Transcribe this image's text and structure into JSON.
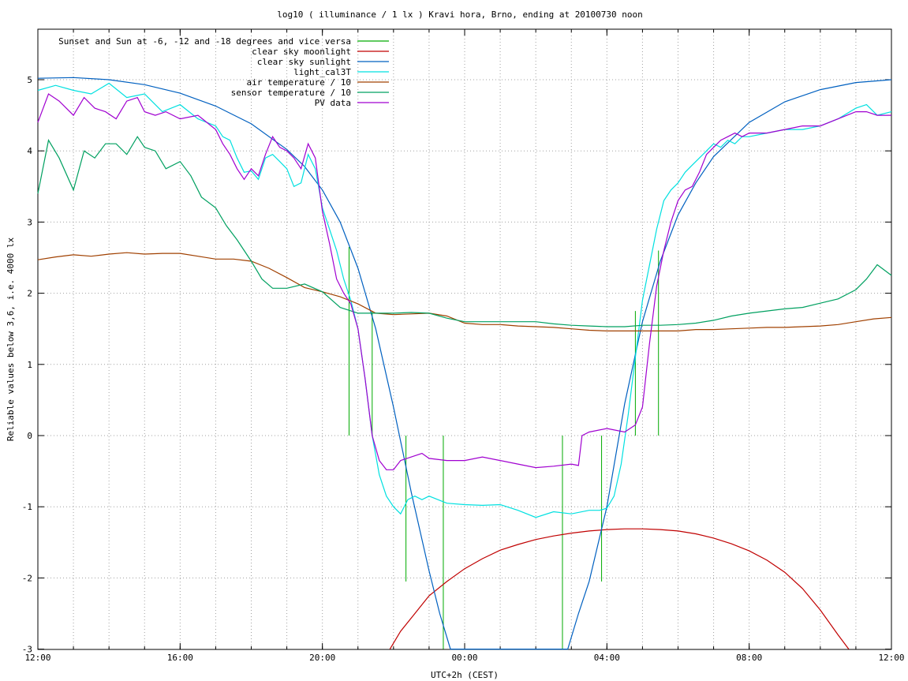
{
  "chart_data": {
    "type": "line",
    "title": "log10 ( illuminance / 1 lx ) Kravi hora, Brno, ending at 20100730 noon",
    "xlabel": "UTC+2h (CEST)",
    "ylabel": "Reliable values below 3,6, i.e. 4000 lx",
    "x_unit": "hours since 12:00",
    "xlim": [
      0,
      24
    ],
    "ylim": [
      -3,
      5.8
    ],
    "x_ticks": [
      {
        "pos": 0,
        "label": "12:00"
      },
      {
        "pos": 4,
        "label": "16:00"
      },
      {
        "pos": 8,
        "label": "20:00"
      },
      {
        "pos": 12,
        "label": "00:00"
      },
      {
        "pos": 16,
        "label": "04:00"
      },
      {
        "pos": 20,
        "label": "08:00"
      },
      {
        "pos": 24,
        "label": "12:00"
      }
    ],
    "y_ticks": [
      -3,
      -2,
      -1,
      0,
      1,
      2,
      3,
      4,
      5
    ],
    "grid": true,
    "legend_position": "top-left",
    "series": [
      {
        "name": "Sunset and Sun at -6, -12 and -18 degrees and vice versa",
        "color": "#00aa00",
        "style": "impulses",
        "points": [
          [
            8.75,
            2.65,
            0
          ],
          [
            9.4,
            1.75,
            0
          ],
          [
            10.35,
            0,
            -2.05
          ],
          [
            11.4,
            0,
            -3
          ],
          [
            14.75,
            0,
            -3
          ],
          [
            15.85,
            0,
            -2.05
          ],
          [
            16.8,
            1.75,
            0
          ],
          [
            17.45,
            2.6,
            0
          ]
        ]
      },
      {
        "name": "clear sky moonlight",
        "color": "#c00000",
        "x": [
          9.9,
          10.2,
          10.6,
          11.0,
          11.5,
          12.0,
          12.5,
          13.0,
          13.5,
          14.0,
          14.5,
          15.0,
          15.5,
          16.0,
          16.5,
          17.0,
          17.5,
          18.0,
          18.5,
          19.0,
          19.5,
          20.0,
          20.5,
          21.0,
          21.5,
          22.0,
          22.5,
          22.8
        ],
        "values": [
          -3.0,
          -2.75,
          -2.5,
          -2.25,
          -2.05,
          -1.87,
          -1.73,
          -1.61,
          -1.53,
          -1.46,
          -1.41,
          -1.37,
          -1.34,
          -1.32,
          -1.31,
          -1.31,
          -1.32,
          -1.34,
          -1.38,
          -1.44,
          -1.52,
          -1.62,
          -1.75,
          -1.92,
          -2.15,
          -2.45,
          -2.8,
          -3.0
        ]
      },
      {
        "name": "clear sky sunlight",
        "color": "#0060c0",
        "x": [
          0,
          1,
          2,
          3,
          4,
          5,
          6,
          7,
          7.5,
          8,
          8.5,
          9,
          9.5,
          10,
          10.5,
          11,
          11.3,
          11.6,
          14.9,
          15.2,
          15.5,
          16,
          16.5,
          17,
          17.5,
          18,
          18.5,
          19,
          20,
          21,
          22,
          23,
          24
        ],
        "values": [
          5.02,
          5.03,
          5.0,
          4.93,
          4.81,
          4.63,
          4.38,
          4.02,
          3.78,
          3.45,
          3.0,
          2.35,
          1.5,
          0.4,
          -0.8,
          -1.9,
          -2.5,
          -3.0,
          -3.0,
          -2.5,
          -2.05,
          -1.0,
          0.45,
          1.6,
          2.45,
          3.1,
          3.55,
          3.92,
          4.4,
          4.69,
          4.86,
          4.96,
          5.0
        ]
      },
      {
        "name": "light_cal3T",
        "color": "#00e0e0",
        "x": [
          0,
          0.5,
          1.0,
          1.5,
          2.0,
          2.5,
          3.0,
          3.5,
          4.0,
          4.5,
          5.0,
          5.2,
          5.4,
          5.6,
          5.8,
          6.0,
          6.2,
          6.4,
          6.6,
          6.8,
          7.0,
          7.2,
          7.4,
          7.6,
          7.8,
          8.0,
          8.2,
          8.4,
          8.6,
          8.8,
          9.0,
          9.2,
          9.4,
          9.6,
          9.8,
          10.0,
          10.2,
          10.4,
          10.6,
          10.8,
          11.0,
          11.5,
          12.0,
          12.5,
          13.0,
          13.5,
          14.0,
          14.5,
          15.0,
          15.5,
          15.8,
          16.0,
          16.2,
          16.4,
          16.6,
          16.8,
          17.0,
          17.2,
          17.4,
          17.6,
          17.8,
          18.0,
          18.2,
          18.4,
          18.6,
          18.8,
          19.0,
          19.2,
          19.4,
          19.6,
          19.8,
          20.0,
          20.5,
          21.0,
          21.5,
          22.0,
          22.5,
          23.0,
          23.3,
          23.6,
          24.0
        ],
        "values": [
          4.85,
          4.92,
          4.85,
          4.8,
          4.95,
          4.75,
          4.8,
          4.55,
          4.65,
          4.45,
          4.35,
          4.2,
          4.15,
          3.9,
          3.7,
          3.72,
          3.6,
          3.9,
          3.95,
          3.85,
          3.75,
          3.5,
          3.55,
          3.95,
          3.75,
          3.2,
          2.9,
          2.6,
          2.2,
          1.9,
          1.5,
          0.8,
          0.0,
          -0.55,
          -0.85,
          -1.0,
          -1.1,
          -0.9,
          -0.85,
          -0.9,
          -0.85,
          -0.95,
          -0.97,
          -0.98,
          -0.97,
          -1.05,
          -1.15,
          -1.07,
          -1.1,
          -1.05,
          -1.05,
          -1.02,
          -0.85,
          -0.4,
          0.3,
          1.1,
          1.9,
          2.4,
          2.9,
          3.3,
          3.45,
          3.55,
          3.7,
          3.8,
          3.9,
          4.0,
          4.1,
          4.05,
          4.15,
          4.1,
          4.2,
          4.2,
          4.25,
          4.3,
          4.3,
          4.35,
          4.45,
          4.6,
          4.65,
          4.5,
          4.55
        ]
      },
      {
        "name": "air temperature / 10",
        "color": "#a04000",
        "x": [
          0,
          0.5,
          1.0,
          1.5,
          2.0,
          2.5,
          3.0,
          3.5,
          4.0,
          4.5,
          5.0,
          5.5,
          6.0,
          6.5,
          7.0,
          7.5,
          8.0,
          8.5,
          9.0,
          9.5,
          10.0,
          10.5,
          11.0,
          11.5,
          12.0,
          12.5,
          13.0,
          13.5,
          14.0,
          14.5,
          15.0,
          15.5,
          16.0,
          16.5,
          17.0,
          17.5,
          18.0,
          18.5,
          19.0,
          19.5,
          20.0,
          20.5,
          21.0,
          21.5,
          22.0,
          22.5,
          23.0,
          23.5,
          24.0
        ],
        "values": [
          2.47,
          2.51,
          2.54,
          2.52,
          2.55,
          2.57,
          2.55,
          2.56,
          2.56,
          2.52,
          2.48,
          2.48,
          2.45,
          2.35,
          2.22,
          2.08,
          2.02,
          1.95,
          1.85,
          1.72,
          1.7,
          1.71,
          1.72,
          1.68,
          1.58,
          1.56,
          1.56,
          1.54,
          1.53,
          1.52,
          1.5,
          1.48,
          1.47,
          1.47,
          1.47,
          1.47,
          1.47,
          1.49,
          1.49,
          1.5,
          1.51,
          1.52,
          1.52,
          1.53,
          1.54,
          1.56,
          1.6,
          1.64,
          1.66
        ]
      },
      {
        "name": "sensor temperature / 10",
        "color": "#00a060",
        "x": [
          0,
          0.3,
          0.6,
          1.0,
          1.3,
          1.6,
          1.9,
          2.2,
          2.5,
          2.8,
          3.0,
          3.3,
          3.6,
          4.0,
          4.3,
          4.6,
          5.0,
          5.3,
          5.6,
          6.0,
          6.3,
          6.6,
          7.0,
          7.5,
          8.0,
          8.5,
          9.0,
          9.5,
          10.0,
          10.5,
          11.0,
          11.5,
          12.0,
          12.5,
          13.0,
          13.5,
          14.0,
          14.5,
          15.0,
          15.5,
          16.0,
          16.5,
          17.0,
          17.5,
          18.0,
          18.5,
          19.0,
          19.5,
          20.0,
          20.5,
          21.0,
          21.5,
          22.0,
          22.5,
          23.0,
          23.3,
          23.6,
          24.0
        ],
        "values": [
          3.4,
          4.15,
          3.9,
          3.45,
          4.0,
          3.9,
          4.1,
          4.1,
          3.95,
          4.2,
          4.05,
          4.0,
          3.75,
          3.85,
          3.65,
          3.35,
          3.2,
          2.95,
          2.75,
          2.45,
          2.2,
          2.07,
          2.07,
          2.13,
          2.02,
          1.8,
          1.72,
          1.72,
          1.72,
          1.73,
          1.72,
          1.65,
          1.6,
          1.6,
          1.6,
          1.6,
          1.6,
          1.57,
          1.55,
          1.54,
          1.53,
          1.53,
          1.55,
          1.55,
          1.56,
          1.58,
          1.62,
          1.68,
          1.72,
          1.75,
          1.78,
          1.8,
          1.86,
          1.92,
          2.05,
          2.2,
          2.4,
          2.25
        ]
      },
      {
        "name": "PV data",
        "color": "#a000d0",
        "x": [
          0,
          0.3,
          0.6,
          1.0,
          1.3,
          1.6,
          1.9,
          2.2,
          2.5,
          2.8,
          3.0,
          3.3,
          3.6,
          4.0,
          4.5,
          5.0,
          5.2,
          5.4,
          5.6,
          5.8,
          6.0,
          6.2,
          6.4,
          6.6,
          6.8,
          7.0,
          7.2,
          7.4,
          7.6,
          7.8,
          8.0,
          8.2,
          8.4,
          8.6,
          8.8,
          9.0,
          9.2,
          9.4,
          9.6,
          9.8,
          10.0,
          10.2,
          10.5,
          10.8,
          11.0,
          11.5,
          12.0,
          12.5,
          13.0,
          13.5,
          14.0,
          14.5,
          15.0,
          15.2,
          15.3,
          15.5,
          16.0,
          16.5,
          16.8,
          17.0,
          17.2,
          17.4,
          17.6,
          17.8,
          18.0,
          18.2,
          18.4,
          18.6,
          18.8,
          19.0,
          19.2,
          19.4,
          19.6,
          19.8,
          20.0,
          20.5,
          21.0,
          21.5,
          22.0,
          22.5,
          23.0,
          23.3,
          23.6,
          24.0
        ],
        "values": [
          4.4,
          4.8,
          4.7,
          4.5,
          4.75,
          4.6,
          4.55,
          4.45,
          4.7,
          4.75,
          4.55,
          4.5,
          4.55,
          4.45,
          4.5,
          4.3,
          4.1,
          3.95,
          3.75,
          3.6,
          3.75,
          3.65,
          3.95,
          4.2,
          4.05,
          4.0,
          3.9,
          3.75,
          4.1,
          3.9,
          3.15,
          2.7,
          2.2,
          2.0,
          1.85,
          1.5,
          0.8,
          0.0,
          -0.35,
          -0.48,
          -0.48,
          -0.35,
          -0.3,
          -0.25,
          -0.32,
          -0.35,
          -0.35,
          -0.3,
          -0.35,
          -0.4,
          -0.45,
          -0.43,
          -0.4,
          -0.42,
          0.0,
          0.05,
          0.1,
          0.05,
          0.15,
          0.4,
          1.3,
          2.1,
          2.6,
          3.0,
          3.3,
          3.45,
          3.5,
          3.7,
          3.95,
          4.05,
          4.15,
          4.2,
          4.25,
          4.2,
          4.25,
          4.25,
          4.3,
          4.35,
          4.35,
          4.45,
          4.55,
          4.55,
          4.5,
          4.5
        ]
      }
    ]
  }
}
